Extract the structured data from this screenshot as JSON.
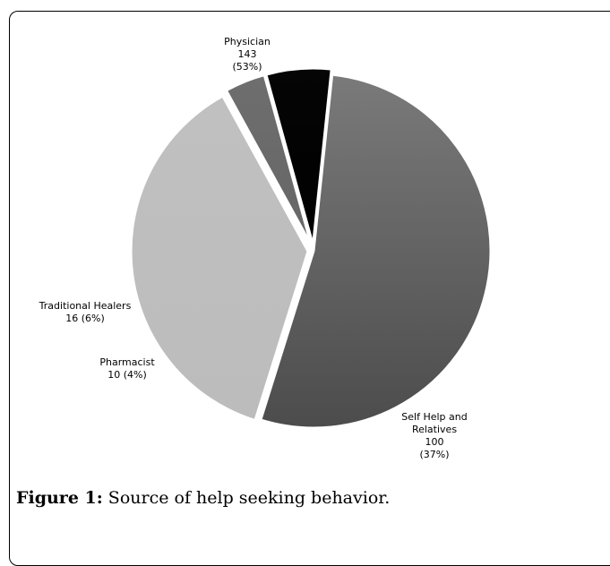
{
  "colors": {
    "frame": "#000000",
    "slice_edge": "#ffffff"
  },
  "caption": {
    "label": "Figure 1:",
    "text": " Source of help seeking behavior."
  },
  "chart_data": {
    "type": "pie",
    "title": "",
    "slices": [
      {
        "name": "Physician",
        "value": 143,
        "percent_label": "(53%)",
        "label_lines": [
          "Physician",
          "143",
          "(53%)"
        ],
        "color_top": "#7a7a7a",
        "color_bottom": "#4c4c4c",
        "exploded": false
      },
      {
        "name": "Self Help and Relatives",
        "value": 100,
        "percent_label": "(37%)",
        "label_lines": [
          "Self Help and",
          "Relatives",
          "100",
          "(37%)"
        ],
        "color_top": "#c0c0c0",
        "color_bottom": "#bcbcbc",
        "exploded": true
      },
      {
        "name": "Pharmacist",
        "value": 10,
        "percent_label": "(4%)",
        "label_lines": [
          "Pharmacist",
          "10 (4%)"
        ],
        "color_top": "#6e6e6e",
        "color_bottom": "#666666",
        "exploded": true
      },
      {
        "name": "Traditional Healers",
        "value": 16,
        "percent_label": "(6%)",
        "label_lines": [
          "Traditional Healers",
          "16 (6%)"
        ],
        "color_top": "#050505",
        "color_bottom": "#000000",
        "exploded": true
      }
    ]
  }
}
